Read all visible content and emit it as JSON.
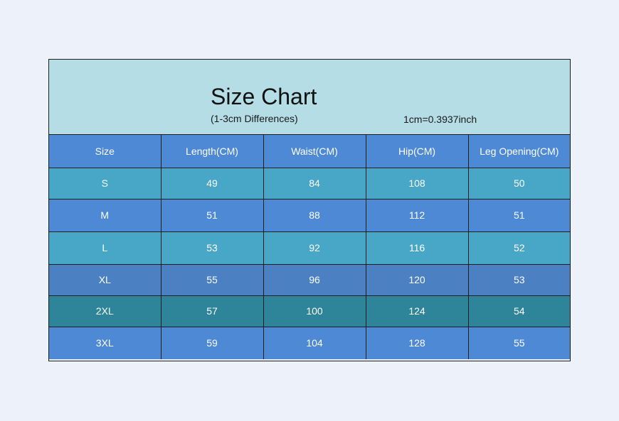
{
  "header": {
    "title": "Size Chart",
    "subtitle": "(1-3cm Differences)",
    "conversion": "1cm=0.3937inch"
  },
  "table": {
    "columns": [
      "Size",
      "Length(CM)",
      "Waist(CM)",
      "Hip(CM)",
      "Leg Opening(CM)"
    ],
    "rows": [
      [
        "S",
        "49",
        "84",
        "108",
        "50"
      ],
      [
        "M",
        "51",
        "88",
        "112",
        "51"
      ],
      [
        "L",
        "53",
        "92",
        "116",
        "52"
      ],
      [
        "XL",
        "55",
        "96",
        "120",
        "53"
      ],
      [
        "2XL",
        "57",
        "100",
        "124",
        "54"
      ],
      [
        "3XL",
        "59",
        "104",
        "128",
        "55"
      ]
    ]
  },
  "colors": {
    "page_background": "#ecf1fa",
    "header_background": "#b4dde6",
    "row_blue": "#4e89d5",
    "row_teal": "#48a6c7",
    "row_steel": "#4b80c2",
    "row_dark_teal": "#2e8599",
    "text_on_rows": "#ffffff"
  }
}
